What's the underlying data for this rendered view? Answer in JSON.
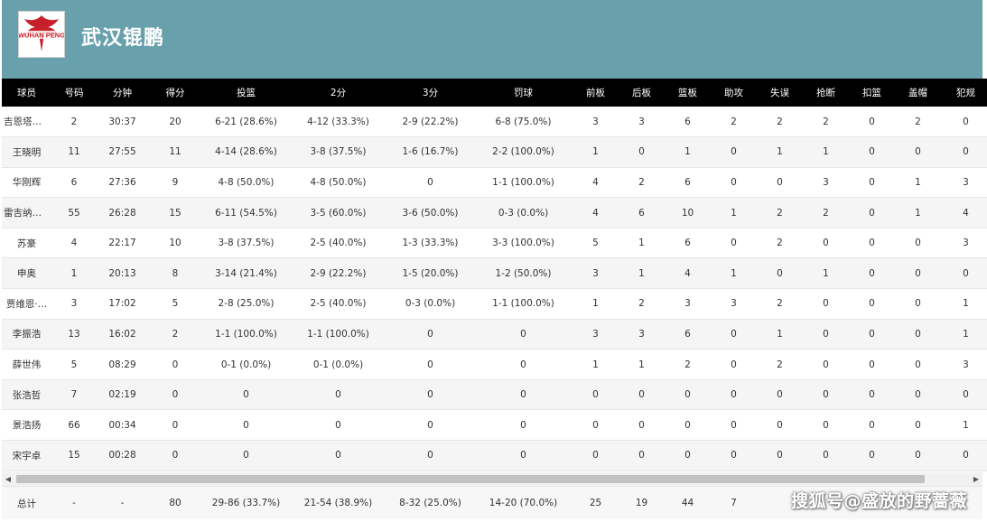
{
  "header": {
    "team_name": "武汉锟鹏",
    "logo_text": "WUHAN PENG"
  },
  "table": {
    "columns": [
      "球员",
      "号码",
      "分钟",
      "得分",
      "投篮",
      "2分",
      "3分",
      "罚球",
      "前板",
      "后板",
      "篮板",
      "助攻",
      "失误",
      "抢断",
      "扣篮",
      "盖帽",
      "犯规"
    ],
    "rows": [
      [
        "吉恩塔尔…",
        "2",
        "30:37",
        "20",
        "6-21 (28.6%)",
        "4-12 (33.3%)",
        "2-9 (22.2%)",
        "6-8 (75.0%)",
        "3",
        "3",
        "6",
        "2",
        "2",
        "2",
        "0",
        "2",
        "0"
      ],
      [
        "王晓明",
        "11",
        "27:55",
        "11",
        "4-14 (28.6%)",
        "3-8 (37.5%)",
        "1-6 (16.7%)",
        "2-2 (100.0%)",
        "1",
        "0",
        "1",
        "0",
        "1",
        "1",
        "0",
        "0",
        "0"
      ],
      [
        "华刚辉",
        "6",
        "27:36",
        "9",
        "4-8 (50.0%)",
        "4-8 (50.0%)",
        "0",
        "1-1 (100.0%)",
        "4",
        "2",
        "6",
        "0",
        "0",
        "3",
        "0",
        "1",
        "3"
      ],
      [
        "雷吉纳德…",
        "55",
        "26:28",
        "15",
        "6-11 (54.5%)",
        "3-5 (60.0%)",
        "3-6 (50.0%)",
        "0-3 (0.0%)",
        "4",
        "6",
        "10",
        "1",
        "2",
        "2",
        "0",
        "1",
        "4"
      ],
      [
        "苏豪",
        "4",
        "22:17",
        "10",
        "3-8 (37.5%)",
        "2-5 (40.0%)",
        "1-3 (33.3%)",
        "3-3 (100.0%)",
        "5",
        "1",
        "6",
        "0",
        "2",
        "0",
        "0",
        "0",
        "3"
      ],
      [
        "申奥",
        "1",
        "20:13",
        "8",
        "3-14 (21.4%)",
        "2-9 (22.2%)",
        "1-5 (20.0%)",
        "1-2 (50.0%)",
        "3",
        "1",
        "4",
        "1",
        "0",
        "1",
        "0",
        "0",
        "0"
      ],
      [
        "贾维恩·…",
        "3",
        "17:02",
        "5",
        "2-8 (25.0%)",
        "2-5 (40.0%)",
        "0-3 (0.0%)",
        "1-1 (100.0%)",
        "1",
        "2",
        "3",
        "3",
        "2",
        "0",
        "0",
        "0",
        "1"
      ],
      [
        "李振浩",
        "13",
        "16:02",
        "2",
        "1-1 (100.0%)",
        "1-1 (100.0%)",
        "0",
        "0",
        "3",
        "3",
        "6",
        "0",
        "1",
        "0",
        "0",
        "0",
        "1"
      ],
      [
        "薛世伟",
        "5",
        "08:29",
        "0",
        "0-1 (0.0%)",
        "0-1 (0.0%)",
        "0",
        "0",
        "1",
        "1",
        "2",
        "0",
        "2",
        "0",
        "0",
        "0",
        "3"
      ],
      [
        "张浩哲",
        "7",
        "02:19",
        "0",
        "0",
        "0",
        "0",
        "0",
        "0",
        "0",
        "0",
        "0",
        "0",
        "0",
        "0",
        "0",
        "0"
      ],
      [
        "景浩扬",
        "66",
        "00:34",
        "0",
        "0",
        "0",
        "0",
        "0",
        "0",
        "0",
        "0",
        "0",
        "0",
        "0",
        "0",
        "0",
        "1"
      ],
      [
        "宋宇卓",
        "15",
        "00:28",
        "0",
        "0",
        "0",
        "0",
        "0",
        "0",
        "0",
        "0",
        "0",
        "0",
        "0",
        "0",
        "0",
        "0"
      ]
    ],
    "totals": [
      "总计",
      "-",
      "-",
      "80",
      "29-86 (33.7%)",
      "21-54 (38.9%)",
      "8-32 (25.0%)",
      "14-20 (70.0%)",
      "25",
      "19",
      "44",
      "7",
      "",
      "",
      "",
      "",
      ""
    ]
  },
  "watermark": "搜狐号@盛放的野蔷薇",
  "colors": {
    "header_bg": "#68a0ab",
    "table_head_bg": "#000000",
    "logo_red": "#c8202a"
  }
}
